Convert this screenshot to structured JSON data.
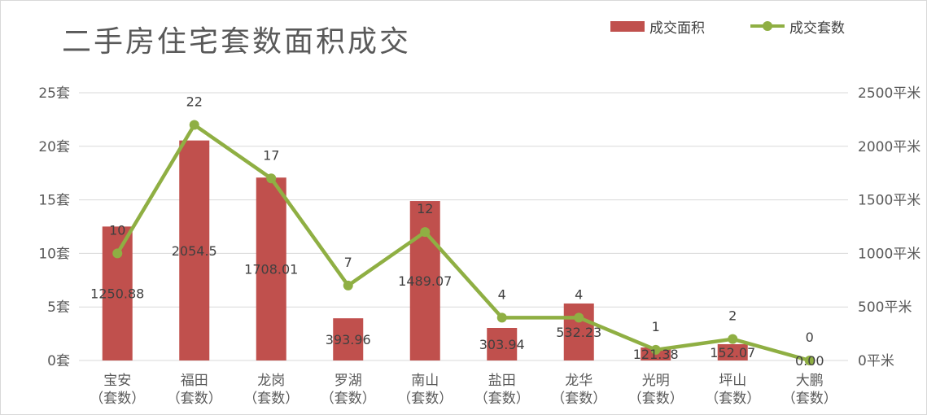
{
  "chart_data": {
    "type": "bar",
    "title": "二手房住宅套数面积成交",
    "categories": [
      [
        "宝安",
        "（套数）"
      ],
      [
        "福田",
        "（套数）"
      ],
      [
        "龙岗",
        "（套数）"
      ],
      [
        "罗湖",
        "（套数）"
      ],
      [
        "南山",
        "（套数）"
      ],
      [
        "盐田",
        "（套数）"
      ],
      [
        "龙华",
        "（套数）"
      ],
      [
        "光明",
        "（套数）"
      ],
      [
        "坪山",
        "（套数）"
      ],
      [
        "大鹏",
        "（套数）"
      ]
    ],
    "series": [
      {
        "name": "成交面积",
        "type": "bar",
        "axis": "right",
        "color": "#c0504d",
        "values": [
          1250.88,
          2054.5,
          1708.01,
          393.96,
          1489.07,
          303.94,
          532.23,
          121.38,
          152.07,
          0.0
        ],
        "labels": [
          "1250.88",
          "2054.5",
          "1708.01",
          "393.96",
          "1489.07",
          "303.94",
          "532.23",
          "121.38",
          "152.07",
          "0.00"
        ]
      },
      {
        "name": "成交套数",
        "type": "line",
        "axis": "left",
        "color": "#8faf43",
        "values": [
          10,
          22,
          17,
          7,
          12,
          4,
          4,
          1,
          2,
          0
        ],
        "labels": [
          "10",
          "22",
          "17",
          "7",
          "12",
          "4",
          "4",
          "1",
          "2",
          "0"
        ]
      }
    ],
    "y_left": {
      "ylim": [
        0,
        25
      ],
      "ticks": [
        "0套",
        "5套",
        "10套",
        "15套",
        "20套",
        "25套"
      ]
    },
    "y_right": {
      "ylim": [
        0,
        2500
      ],
      "ticks": [
        "0平米",
        "500平米",
        "1000平米",
        "1500平米",
        "2000平米",
        "2500平米"
      ]
    },
    "grid": true,
    "gridline_color": "#d9d9d9",
    "legend_position": "top-right"
  }
}
